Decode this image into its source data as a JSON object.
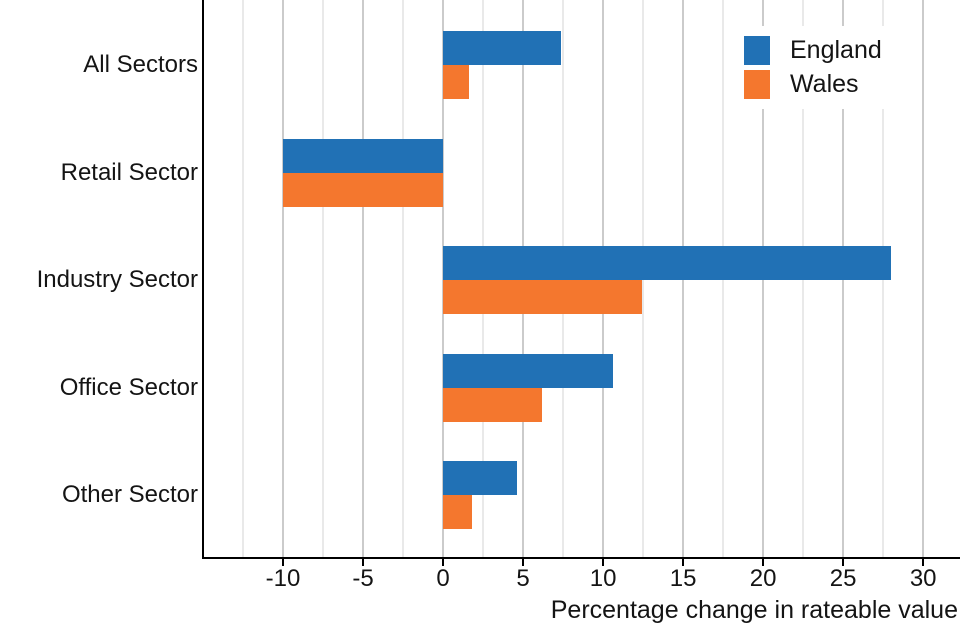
{
  "chart_data": {
    "type": "bar",
    "orientation": "horizontal",
    "xlabel": "Percentage change in rateable value",
    "categories": [
      "All Sectors",
      "Retail Sector",
      "Industry Sector",
      "Office Sector",
      "Other Sector"
    ],
    "series": [
      {
        "name": "England",
        "color": "#2171b5",
        "values": [
          7.4,
          -10.0,
          28.0,
          10.6,
          4.6
        ]
      },
      {
        "name": "Wales",
        "color": "#f4772e",
        "values": [
          1.6,
          -10.0,
          12.4,
          6.2,
          1.8
        ]
      }
    ],
    "xlim": [
      -15,
      32.3
    ],
    "x_major_ticks": [
      -10,
      -5,
      0,
      5,
      10,
      15,
      20,
      25,
      30
    ],
    "x_minor_tick_step": 2.5,
    "grid": "vertical major and minor gridlines on white background",
    "legend_position": "top-right",
    "style": {
      "background": "#ffffff",
      "grid_major_color": "#cbcbcb",
      "grid_minor_color": "#e9e9e9",
      "axis_color": "#000000",
      "text_color": "#141414"
    }
  }
}
